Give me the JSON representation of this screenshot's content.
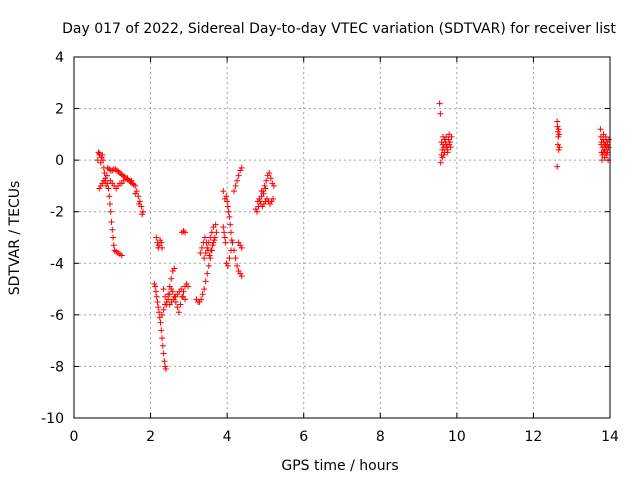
{
  "chart_data": {
    "type": "scatter",
    "title": "Day 017 of 2022, Sidereal Day-to-day VTEC variation (SDTVAR) for receiver list",
    "xlabel": "GPS time / hours",
    "ylabel": "SDTVAR / TECUs",
    "xlim": [
      0,
      14
    ],
    "ylim": [
      -10,
      4
    ],
    "x_ticks": [
      0,
      2,
      4,
      6,
      8,
      10,
      12,
      14
    ],
    "y_ticks": [
      -10,
      -8,
      -6,
      -4,
      -2,
      0,
      2,
      4
    ],
    "grid": true,
    "marker": "+",
    "colors": {
      "series": "#ff0000",
      "axes": "#000000",
      "grid": "#a0a0a0"
    },
    "series": [
      {
        "name": "SDTVAR",
        "points": [
          [
            0.62,
            -0.0
          ],
          [
            0.64,
            0.3
          ],
          [
            0.66,
            0.25
          ],
          [
            0.68,
            0.2
          ],
          [
            0.7,
            -0.1
          ],
          [
            0.72,
            0.1
          ],
          [
            0.74,
            0.2
          ],
          [
            0.76,
            0.0
          ],
          [
            0.78,
            -0.3
          ],
          [
            0.8,
            -0.5
          ],
          [
            0.82,
            -0.8
          ],
          [
            0.84,
            -1.0
          ],
          [
            0.66,
            -1.1
          ],
          [
            0.7,
            -1.0
          ],
          [
            0.74,
            -0.9
          ],
          [
            0.78,
            -0.8
          ],
          [
            0.82,
            -0.7
          ],
          [
            0.86,
            -0.6
          ],
          [
            0.88,
            -0.9
          ],
          [
            0.9,
            -1.1
          ],
          [
            0.92,
            -1.4
          ],
          [
            0.94,
            -1.7
          ],
          [
            0.96,
            -2.0
          ],
          [
            0.98,
            -2.4
          ],
          [
            1.0,
            -2.7
          ],
          [
            1.02,
            -3.0
          ],
          [
            1.04,
            -3.3
          ],
          [
            1.06,
            -3.5
          ],
          [
            1.1,
            -3.55
          ],
          [
            1.15,
            -3.6
          ],
          [
            1.2,
            -3.65
          ],
          [
            1.25,
            -3.7
          ],
          [
            0.88,
            -0.3
          ],
          [
            0.92,
            -0.35
          ],
          [
            0.96,
            -0.4
          ],
          [
            1.0,
            -0.4
          ],
          [
            1.04,
            -0.35
          ],
          [
            1.08,
            -0.35
          ],
          [
            1.12,
            -0.4
          ],
          [
            1.16,
            -0.45
          ],
          [
            1.2,
            -0.5
          ],
          [
            1.24,
            -0.55
          ],
          [
            1.28,
            -0.6
          ],
          [
            1.32,
            -0.65
          ],
          [
            1.36,
            -0.7
          ],
          [
            1.4,
            -0.75
          ],
          [
            1.44,
            -0.8
          ],
          [
            1.48,
            -0.85
          ],
          [
            1.52,
            -0.9
          ],
          [
            1.56,
            -0.95
          ],
          [
            1.6,
            -1.0
          ],
          [
            1.64,
            -1.2
          ],
          [
            1.68,
            -1.4
          ],
          [
            1.72,
            -1.6
          ],
          [
            1.76,
            -1.8
          ],
          [
            1.8,
            -2.0
          ],
          [
            0.95,
            -0.8
          ],
          [
            1.0,
            -0.9
          ],
          [
            1.05,
            -1.0
          ],
          [
            1.1,
            -1.1
          ],
          [
            1.15,
            -1.0
          ],
          [
            1.2,
            -0.9
          ],
          [
            1.25,
            -0.9
          ],
          [
            1.3,
            -0.8
          ],
          [
            1.4,
            -0.7
          ],
          [
            1.5,
            -0.8
          ],
          [
            1.6,
            -1.3
          ],
          [
            1.7,
            -1.7
          ],
          [
            1.78,
            -2.1
          ],
          [
            2.1,
            -4.8
          ],
          [
            2.12,
            -4.9
          ],
          [
            2.14,
            -5.1
          ],
          [
            2.16,
            -5.3
          ],
          [
            2.18,
            -5.5
          ],
          [
            2.2,
            -5.7
          ],
          [
            2.22,
            -5.9
          ],
          [
            2.24,
            -6.1
          ],
          [
            2.26,
            -6.3
          ],
          [
            2.28,
            -6.6
          ],
          [
            2.3,
            -6.9
          ],
          [
            2.32,
            -7.2
          ],
          [
            2.34,
            -7.5
          ],
          [
            2.36,
            -7.8
          ],
          [
            2.38,
            -8.0
          ],
          [
            2.4,
            -8.1
          ],
          [
            2.15,
            -3.0
          ],
          [
            2.18,
            -3.2
          ],
          [
            2.2,
            -3.4
          ],
          [
            2.22,
            -3.3
          ],
          [
            2.25,
            -3.1
          ],
          [
            2.28,
            -3.2
          ],
          [
            2.3,
            -3.4
          ],
          [
            2.34,
            -5.0
          ],
          [
            2.38,
            -5.3
          ],
          [
            2.42,
            -5.6
          ],
          [
            2.46,
            -5.2
          ],
          [
            2.5,
            -4.9
          ],
          [
            2.54,
            -4.6
          ],
          [
            2.58,
            -4.3
          ],
          [
            2.62,
            -4.2
          ],
          [
            2.3,
            -6.0
          ],
          [
            2.34,
            -5.8
          ],
          [
            2.38,
            -5.6
          ],
          [
            2.42,
            -5.5
          ],
          [
            2.46,
            -5.4
          ],
          [
            2.5,
            -5.2
          ],
          [
            2.54,
            -5.0
          ],
          [
            2.58,
            -5.1
          ],
          [
            2.62,
            -5.3
          ],
          [
            2.66,
            -5.5
          ],
          [
            2.7,
            -5.7
          ],
          [
            2.74,
            -5.9
          ],
          [
            2.78,
            -5.6
          ],
          [
            2.82,
            -5.3
          ],
          [
            2.86,
            -5.1
          ],
          [
            2.9,
            -4.9
          ],
          [
            2.94,
            -4.8
          ],
          [
            2.98,
            -4.9
          ],
          [
            2.5,
            -5.6
          ],
          [
            2.55,
            -5.5
          ],
          [
            2.6,
            -5.4
          ],
          [
            2.65,
            -5.3
          ],
          [
            2.7,
            -5.2
          ],
          [
            2.75,
            -5.1
          ],
          [
            2.8,
            -5.0
          ],
          [
            2.85,
            -5.3
          ],
          [
            2.9,
            -5.4
          ],
          [
            2.82,
            -2.8
          ],
          [
            2.86,
            -2.75
          ],
          [
            2.9,
            -2.8
          ],
          [
            3.2,
            -5.4
          ],
          [
            3.24,
            -5.5
          ],
          [
            3.28,
            -5.5
          ],
          [
            3.32,
            -5.4
          ],
          [
            3.36,
            -5.2
          ],
          [
            3.4,
            -5.0
          ],
          [
            3.44,
            -4.7
          ],
          [
            3.48,
            -4.4
          ],
          [
            3.52,
            -4.1
          ],
          [
            3.56,
            -3.8
          ],
          [
            3.6,
            -3.5
          ],
          [
            3.64,
            -3.2
          ],
          [
            3.68,
            -3.0
          ],
          [
            3.72,
            -2.8
          ],
          [
            3.3,
            -3.6
          ],
          [
            3.34,
            -3.4
          ],
          [
            3.38,
            -3.2
          ],
          [
            3.42,
            -3.0
          ],
          [
            3.46,
            -3.2
          ],
          [
            3.5,
            -3.5
          ],
          [
            3.54,
            -3.7
          ],
          [
            3.58,
            -3.5
          ],
          [
            3.62,
            -3.3
          ],
          [
            3.66,
            -3.1
          ],
          [
            3.4,
            -3.8
          ],
          [
            3.44,
            -3.6
          ],
          [
            3.48,
            -3.4
          ],
          [
            3.52,
            -3.2
          ],
          [
            3.56,
            -3.0
          ],
          [
            3.6,
            -2.8
          ],
          [
            3.64,
            -2.6
          ],
          [
            3.7,
            -2.5
          ],
          [
            3.9,
            -2.6
          ],
          [
            3.92,
            -2.8
          ],
          [
            3.94,
            -3.0
          ],
          [
            3.96,
            -3.2
          ],
          [
            3.98,
            -1.4
          ],
          [
            4.0,
            -1.6
          ],
          [
            4.02,
            -1.8
          ],
          [
            4.04,
            -2.0
          ],
          [
            4.06,
            -2.2
          ],
          [
            4.08,
            -2.5
          ],
          [
            4.1,
            -2.8
          ],
          [
            4.12,
            -3.1
          ],
          [
            3.9,
            -1.2
          ],
          [
            3.94,
            -1.5
          ],
          [
            3.98,
            -4.0
          ],
          [
            4.02,
            -4.1
          ],
          [
            4.06,
            -3.8
          ],
          [
            4.1,
            -3.5
          ],
          [
            4.14,
            -3.2
          ],
          [
            4.18,
            -3.5
          ],
          [
            4.22,
            -3.8
          ],
          [
            4.26,
            -4.1
          ],
          [
            4.3,
            -4.3
          ],
          [
            4.34,
            -4.4
          ],
          [
            4.38,
            -4.5
          ],
          [
            4.3,
            -3.2
          ],
          [
            4.34,
            -3.3
          ],
          [
            4.38,
            -3.4
          ],
          [
            4.18,
            -1.2
          ],
          [
            4.22,
            -1.0
          ],
          [
            4.26,
            -0.8
          ],
          [
            4.3,
            -0.6
          ],
          [
            4.34,
            -0.4
          ],
          [
            4.38,
            -0.3
          ],
          [
            4.75,
            -1.9
          ],
          [
            4.78,
            -2.0
          ],
          [
            4.82,
            -1.8
          ],
          [
            4.86,
            -1.6
          ],
          [
            4.9,
            -1.4
          ],
          [
            4.94,
            -1.2
          ],
          [
            4.98,
            -1.0
          ],
          [
            5.02,
            -0.8
          ],
          [
            5.06,
            -0.6
          ],
          [
            5.1,
            -0.5
          ],
          [
            5.14,
            -0.7
          ],
          [
            5.18,
            -0.9
          ],
          [
            5.22,
            -1.0
          ],
          [
            4.8,
            -1.6
          ],
          [
            4.84,
            -1.5
          ],
          [
            4.88,
            -1.7
          ],
          [
            4.92,
            -1.8
          ],
          [
            4.96,
            -1.7
          ],
          [
            5.0,
            -1.6
          ],
          [
            5.04,
            -1.5
          ],
          [
            5.08,
            -1.6
          ],
          [
            5.12,
            -1.7
          ],
          [
            5.16,
            -1.6
          ],
          [
            5.2,
            -1.5
          ],
          [
            4.9,
            -1.2
          ],
          [
            4.95,
            -1.3
          ],
          [
            5.0,
            -1.1
          ],
          [
            9.55,
            2.2
          ],
          [
            9.57,
            1.8
          ],
          [
            9.58,
            -0.1
          ],
          [
            9.6,
            0.2
          ],
          [
            9.62,
            0.4
          ],
          [
            9.64,
            0.6
          ],
          [
            9.66,
            0.5
          ],
          [
            9.68,
            0.3
          ],
          [
            9.7,
            0.7
          ],
          [
            9.72,
            0.9
          ],
          [
            9.74,
            0.6
          ],
          [
            9.76,
            0.4
          ],
          [
            9.78,
            0.8
          ],
          [
            9.8,
            1.0
          ],
          [
            9.82,
            0.7
          ],
          [
            9.84,
            0.5
          ],
          [
            9.86,
            0.9
          ],
          [
            9.6,
            0.7
          ],
          [
            9.64,
            0.9
          ],
          [
            9.68,
            0.8
          ],
          [
            9.72,
            0.5
          ],
          [
            9.76,
            0.3
          ],
          [
            9.8,
            0.6
          ],
          [
            9.62,
            0.1
          ],
          [
            9.66,
            0.2
          ],
          [
            12.62,
            1.5
          ],
          [
            12.63,
            1.3
          ],
          [
            12.64,
            1.1
          ],
          [
            12.65,
            0.9
          ],
          [
            12.66,
            1.2
          ],
          [
            12.67,
            1.0
          ],
          [
            12.64,
            0.6
          ],
          [
            12.66,
            0.4
          ],
          [
            12.68,
            0.5
          ],
          [
            12.62,
            -0.25
          ],
          [
            13.75,
            1.2
          ],
          [
            13.76,
            0.9
          ],
          [
            13.77,
            0.6
          ],
          [
            13.78,
            0.3
          ],
          [
            13.79,
            0.0
          ],
          [
            13.8,
            0.2
          ],
          [
            13.81,
            0.5
          ],
          [
            13.82,
            0.8
          ],
          [
            13.83,
            1.0
          ],
          [
            13.84,
            0.7
          ],
          [
            13.85,
            0.4
          ],
          [
            13.86,
            0.1
          ],
          [
            13.87,
            0.3
          ],
          [
            13.88,
            0.6
          ],
          [
            13.89,
            0.9
          ],
          [
            13.9,
            0.5
          ],
          [
            13.91,
            0.2
          ],
          [
            13.92,
            0.4
          ],
          [
            13.93,
            0.7
          ],
          [
            13.94,
            0.3
          ],
          [
            13.95,
            0.0
          ],
          [
            13.96,
            0.5
          ],
          [
            13.97,
            0.8
          ],
          [
            13.78,
            0.7
          ],
          [
            13.82,
            0.3
          ],
          [
            13.86,
            0.6
          ],
          [
            13.9,
            0.8
          ],
          [
            13.94,
            0.6
          ]
        ]
      }
    ]
  }
}
